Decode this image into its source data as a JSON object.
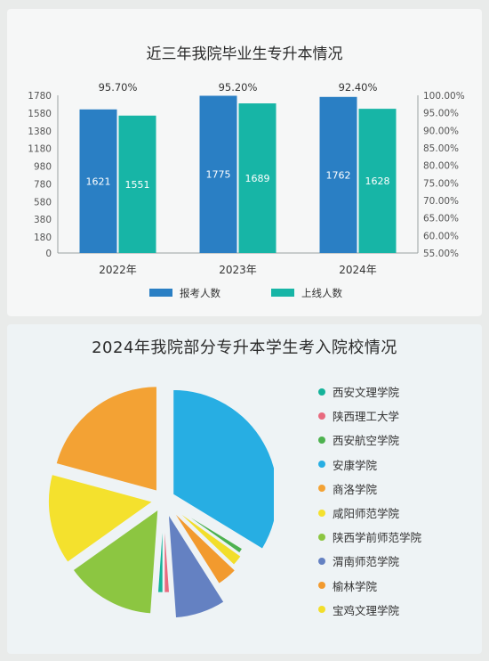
{
  "chart_data": [
    {
      "type": "bar",
      "title": "近三年我院毕业生专升本情况",
      "categories": [
        "2022年",
        "2023年",
        "2024年"
      ],
      "series": [
        {
          "name": "报考人数",
          "values": [
            1621,
            1775,
            1762
          ],
          "color": "#2a7fc4"
        },
        {
          "name": "上线人数",
          "values": [
            1551,
            1689,
            1628
          ],
          "color": "#17b5a6"
        }
      ],
      "rates": [
        "95.70%",
        "95.20%",
        "92.40%"
      ],
      "ylim": [
        0,
        1780
      ],
      "yticks": [
        "1780",
        "1580",
        "1380",
        "1180",
        "980",
        "780",
        "580",
        "380",
        "180",
        "0"
      ],
      "y2lim": [
        55,
        100
      ],
      "y2ticks": [
        "100.00%",
        "95.00%",
        "90.00%",
        "85.00%",
        "80.00%",
        "75.00%",
        "70.00%",
        "65.00%",
        "60.00%",
        "55.00%"
      ],
      "legend_position": "bottom",
      "grid": false
    },
    {
      "type": "pie",
      "title": "2024年我院部分专升本学生考入院校情况",
      "labels": [
        "西安文理学院",
        "陕西理工大学",
        "西安航空学院",
        "安康学院",
        "商洛学院",
        "咸阳师范学院",
        "陕西学前师范学院",
        "渭南师范学院",
        "榆林学院",
        "宝鸡文理学院"
      ],
      "values": [
        1,
        1,
        1,
        30,
        18.5,
        12.5,
        12.5,
        7,
        3.5,
        2
      ],
      "colors": [
        "#14b39a",
        "#e86a7e",
        "#4db24f",
        "#27aee3",
        "#f3a234",
        "#f4e12d",
        "#8cc641",
        "#6481c2",
        "#f29a2e",
        "#f2de2a"
      ],
      "legend_position": "right"
    }
  ]
}
